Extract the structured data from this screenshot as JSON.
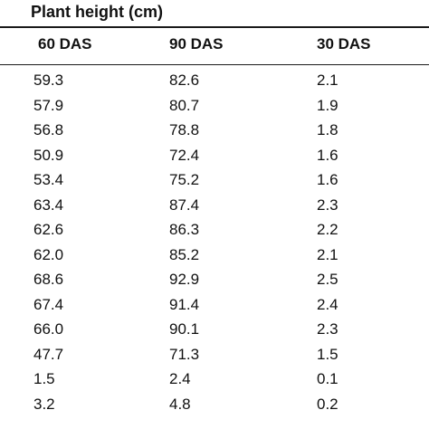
{
  "table": {
    "group_title": "Plant height (cm)",
    "headers": [
      "60 DAS",
      "90 DAS",
      "30 DAS"
    ],
    "rows": [
      [
        "59.3",
        "82.6",
        "2.1"
      ],
      [
        "57.9",
        "80.7",
        "1.9"
      ],
      [
        "56.8",
        "78.8",
        "1.8"
      ],
      [
        "50.9",
        "72.4",
        "1.6"
      ],
      [
        "53.4",
        "75.2",
        "1.6"
      ],
      [
        "63.4",
        "87.4",
        "2.3"
      ],
      [
        "62.6",
        "86.3",
        "2.2"
      ],
      [
        "62.0",
        "85.2",
        "2.1"
      ],
      [
        "68.6",
        "92.9",
        "2.5"
      ],
      [
        "67.4",
        "91.4",
        "2.4"
      ],
      [
        "66.0",
        "90.1",
        "2.3"
      ],
      [
        "47.7",
        "71.3",
        "1.5"
      ],
      [
        "1.5",
        "2.4",
        "0.1"
      ],
      [
        "3.2",
        "4.8",
        "0.2"
      ]
    ]
  }
}
